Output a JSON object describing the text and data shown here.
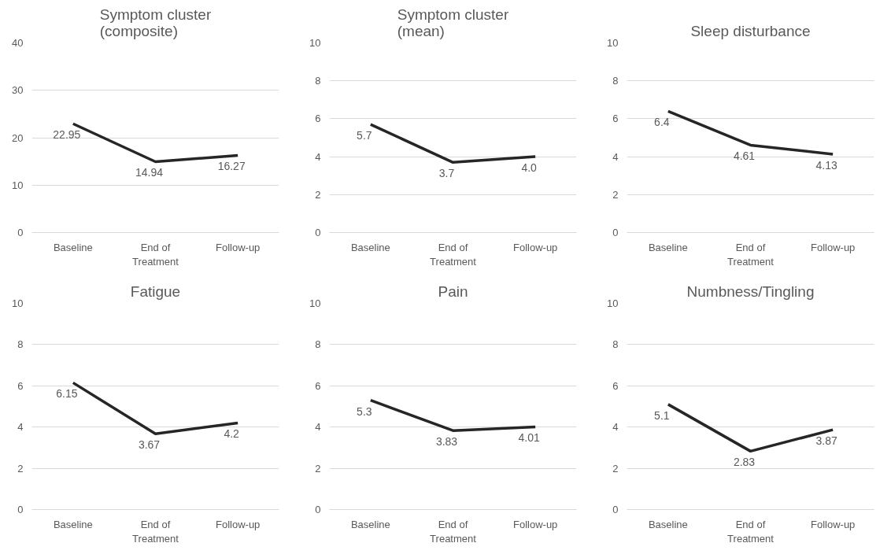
{
  "chart_data": [
    {
      "type": "line",
      "title": "Symptom cluster (composite)",
      "categories": [
        "Baseline",
        "End of Treatment",
        "Follow-up"
      ],
      "values": [
        22.95,
        14.94,
        16.27
      ],
      "value_labels": [
        "22.95",
        "14.94",
        "16.27"
      ],
      "color": "#262626",
      "ylim": [
        0,
        40
      ],
      "yticks": [
        0,
        10,
        20,
        30,
        40
      ],
      "grid": "y",
      "line_style": "solid"
    },
    {
      "type": "line",
      "title": "Symptom cluster (mean)",
      "categories": [
        "Baseline",
        "End of Treatment",
        "Follow-up"
      ],
      "values": [
        5.7,
        3.7,
        4.0
      ],
      "value_labels": [
        "5.7",
        "3.7",
        "4.0"
      ],
      "color": "#262626",
      "ylim": [
        0,
        10
      ],
      "yticks": [
        0,
        2,
        4,
        6,
        8,
        10
      ],
      "grid": "y",
      "line_style": "solid"
    },
    {
      "type": "line",
      "title": "Sleep disturbance",
      "categories": [
        "Baseline",
        "End of Treatment",
        "Follow-up"
      ],
      "values": [
        6.4,
        4.61,
        4.13
      ],
      "value_labels": [
        "6.4",
        "4.61",
        "4.13"
      ],
      "color": "#262626",
      "ylim": [
        0,
        10
      ],
      "yticks": [
        0,
        2,
        4,
        6,
        8,
        10
      ],
      "grid": "y",
      "line_style": "solid"
    },
    {
      "type": "line",
      "title": "Fatigue",
      "categories": [
        "Baseline",
        "End of Treatment",
        "Follow-up"
      ],
      "values": [
        6.15,
        3.67,
        4.2
      ],
      "value_labels": [
        "6.15",
        "3.67",
        "4.2"
      ],
      "color": "#262626",
      "ylim": [
        0,
        10
      ],
      "yticks": [
        0,
        2,
        4,
        6,
        8,
        10
      ],
      "grid": "y",
      "line_style": "solid"
    },
    {
      "type": "line",
      "title": "Pain",
      "categories": [
        "Baseline",
        "End of Treatment",
        "Follow-up"
      ],
      "values": [
        5.3,
        3.83,
        4.01
      ],
      "value_labels": [
        "5.3",
        "3.83",
        "4.01"
      ],
      "color": "#262626",
      "ylim": [
        0,
        10
      ],
      "yticks": [
        0,
        2,
        4,
        6,
        8,
        10
      ],
      "grid": "y",
      "line_style": "solid"
    },
    {
      "type": "line",
      "title": "Numbness/Tingling",
      "categories": [
        "Baseline",
        "End of Treatment",
        "Follow-up"
      ],
      "values": [
        5.1,
        2.83,
        3.87
      ],
      "value_labels": [
        "5.1",
        "2.83",
        "3.87"
      ],
      "color": "#262626",
      "ylim": [
        0,
        10
      ],
      "yticks": [
        0,
        2,
        4,
        6,
        8,
        10
      ],
      "grid": "y",
      "line_style": "solid"
    }
  ]
}
